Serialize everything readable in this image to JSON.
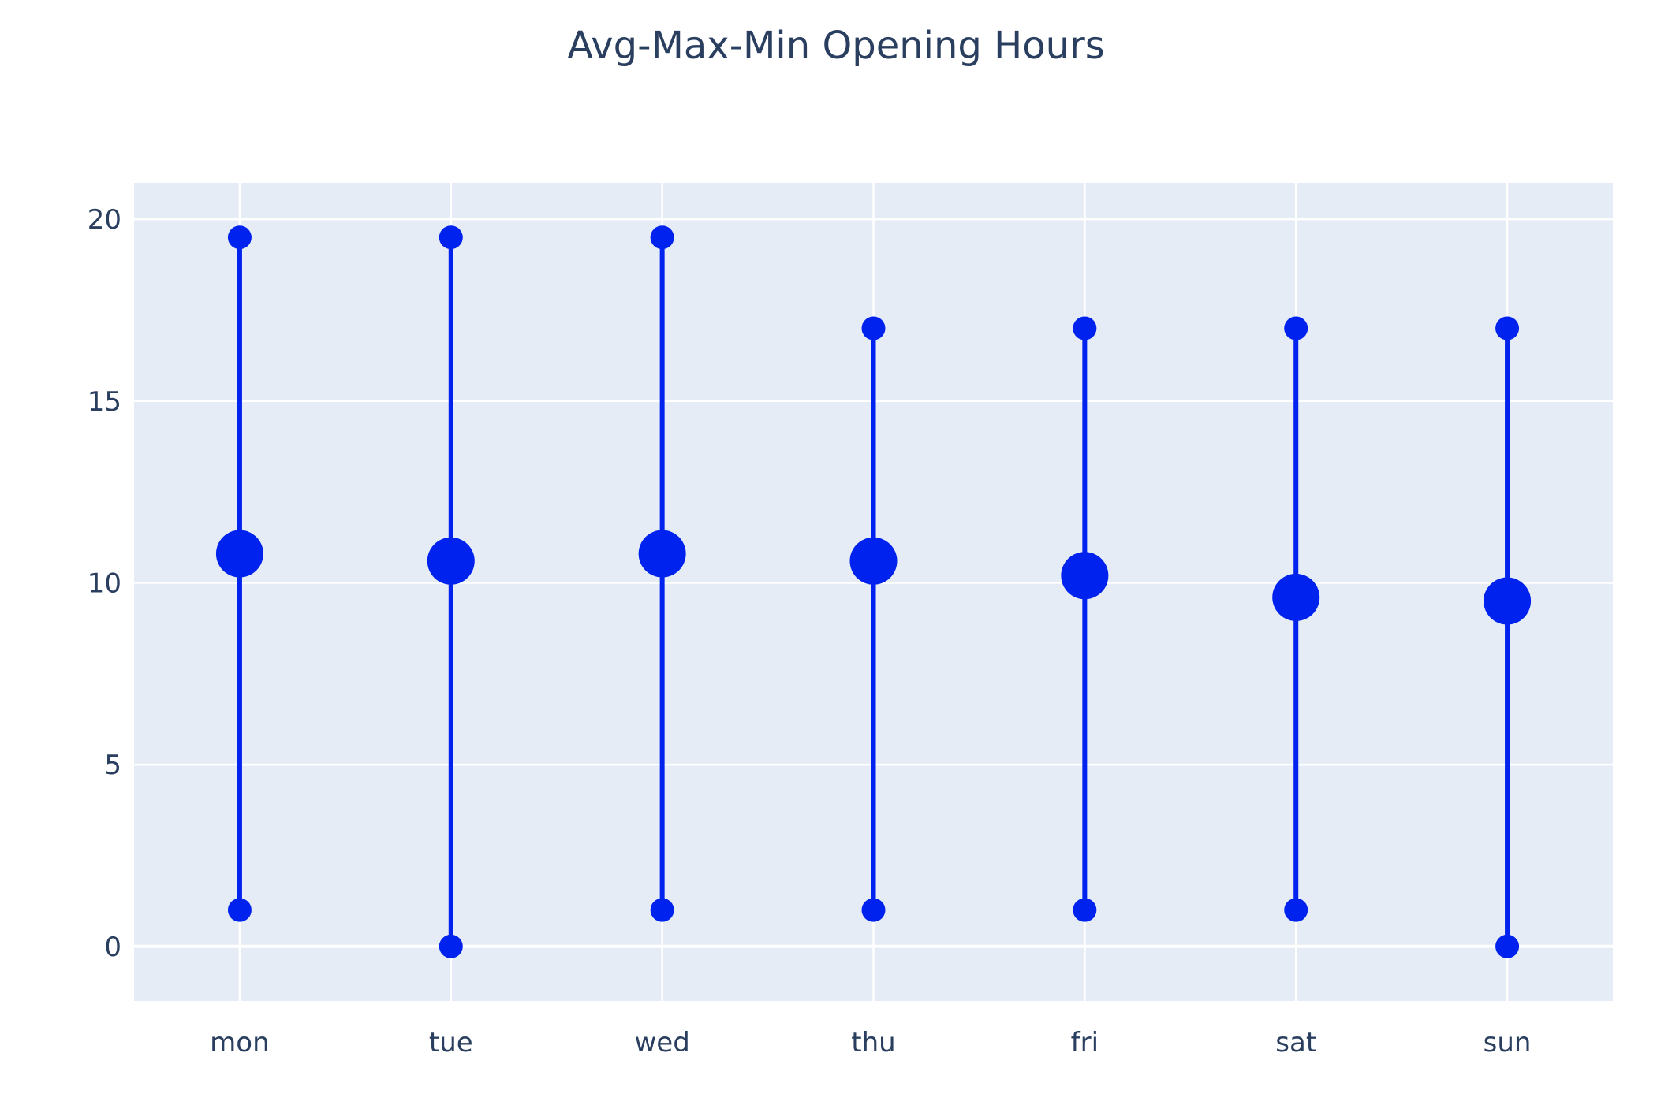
{
  "chart_data": {
    "type": "scatter",
    "title": "Avg-Max-Min Opening Hours",
    "xlabel": "",
    "ylabel": "",
    "categories": [
      "mon",
      "tue",
      "wed",
      "thu",
      "fri",
      "sat",
      "sun"
    ],
    "yticks": [
      "0",
      "5",
      "10",
      "15",
      "20"
    ],
    "ylim": [
      -1.5,
      21
    ],
    "grid": true,
    "legend": "none",
    "series": [
      {
        "values_max": [
          19.5,
          19.5,
          19.5,
          17,
          17,
          17,
          17
        ]
      },
      {
        "values_avg": [
          10.8,
          10.6,
          10.8,
          10.6,
          10.2,
          9.6,
          9.5
        ]
      },
      {
        "values_min": [
          1,
          0,
          1,
          1,
          1,
          1,
          0
        ]
      }
    ],
    "colors": {
      "marker": "#0022ee",
      "plot_bg": "#e5ecf6",
      "grid": "#ffffff",
      "text": "#2a3f5f"
    }
  }
}
